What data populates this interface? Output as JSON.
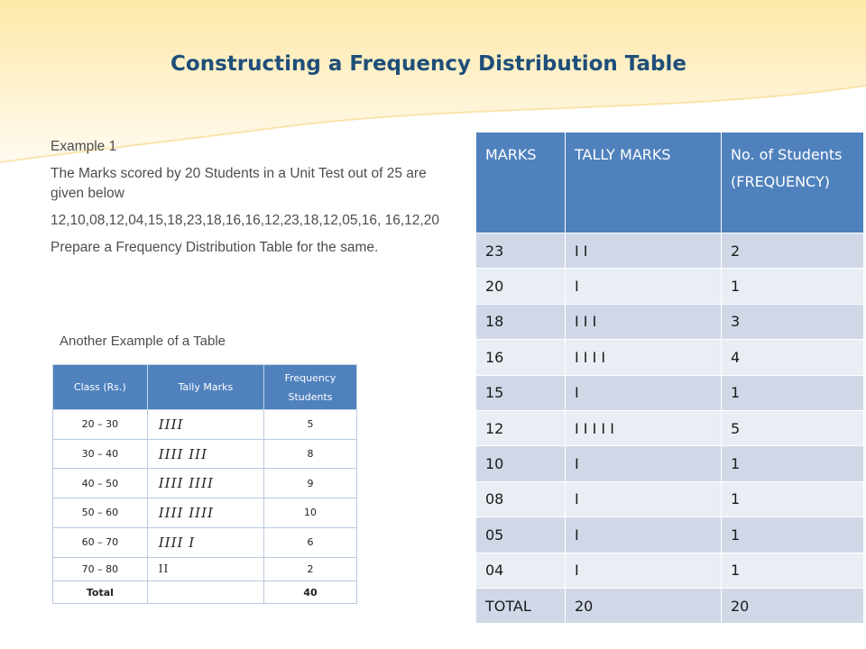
{
  "slide": {
    "title": "Constructing a Frequency Distribution Table",
    "example_label": "Example 1",
    "problem_text": "The Marks scored by 20 Students in a Unit Test out of 25 are given below",
    "data_line": "12,10,08,12,04,15,18,23,18,16,16,12,23,18,12,05,16, 16,12,20",
    "instruction": "Prepare a Frequency Distribution Table for the same.",
    "caption": "Another Example of a Table"
  },
  "example_table": {
    "headers": [
      "Class (Rs.)",
      "Tally Marks",
      "Frequency",
      "Students"
    ],
    "rows": [
      {
        "cls": "20 – 30",
        "tally": "IIII",
        "freq": "5"
      },
      {
        "cls": "30 – 40",
        "tally": "IIII  III",
        "freq": "8"
      },
      {
        "cls": "40 – 50",
        "tally": "IIII  IIII",
        "freq": "9"
      },
      {
        "cls": "50 – 60",
        "tally": "IIII  IIII",
        "freq": "10"
      },
      {
        "cls": "60 – 70",
        "tally": "IIII  I",
        "freq": "6"
      },
      {
        "cls": "70 – 80",
        "tally": "II",
        "freq": "2"
      }
    ],
    "total_label": "Total",
    "total_value": "40"
  },
  "freq_table": {
    "headers": [
      "MARKS",
      "TALLY MARKS",
      "No. of Students (FREQUENCY)"
    ],
    "rows": [
      {
        "mark": "23",
        "tally": "I I",
        "freq": "2"
      },
      {
        "mark": "20",
        "tally": "I",
        "freq": "1"
      },
      {
        "mark": "18",
        "tally": "I I I",
        "freq": "3"
      },
      {
        "mark": "16",
        "tally": "I I I I",
        "freq": "4"
      },
      {
        "mark": "15",
        "tally": "I",
        "freq": "1"
      },
      {
        "mark": "12",
        "tally": "I I I I I",
        "freq": "5"
      },
      {
        "mark": "10",
        "tally": "I",
        "freq": "1"
      },
      {
        "mark": "08",
        "tally": "I",
        "freq": "1"
      },
      {
        "mark": "05",
        "tally": "I",
        "freq": "1"
      },
      {
        "mark": "04",
        "tally": "I",
        "freq": "1"
      }
    ],
    "total": {
      "mark": "TOTAL",
      "tally": "20",
      "freq": "20"
    }
  },
  "colors": {
    "header_blue": "#4f81bd",
    "title_blue": "#1f4e79",
    "row_dark": "#d0d8e8",
    "row_light": "#e9edf4",
    "wave": "#fbe7a6"
  }
}
